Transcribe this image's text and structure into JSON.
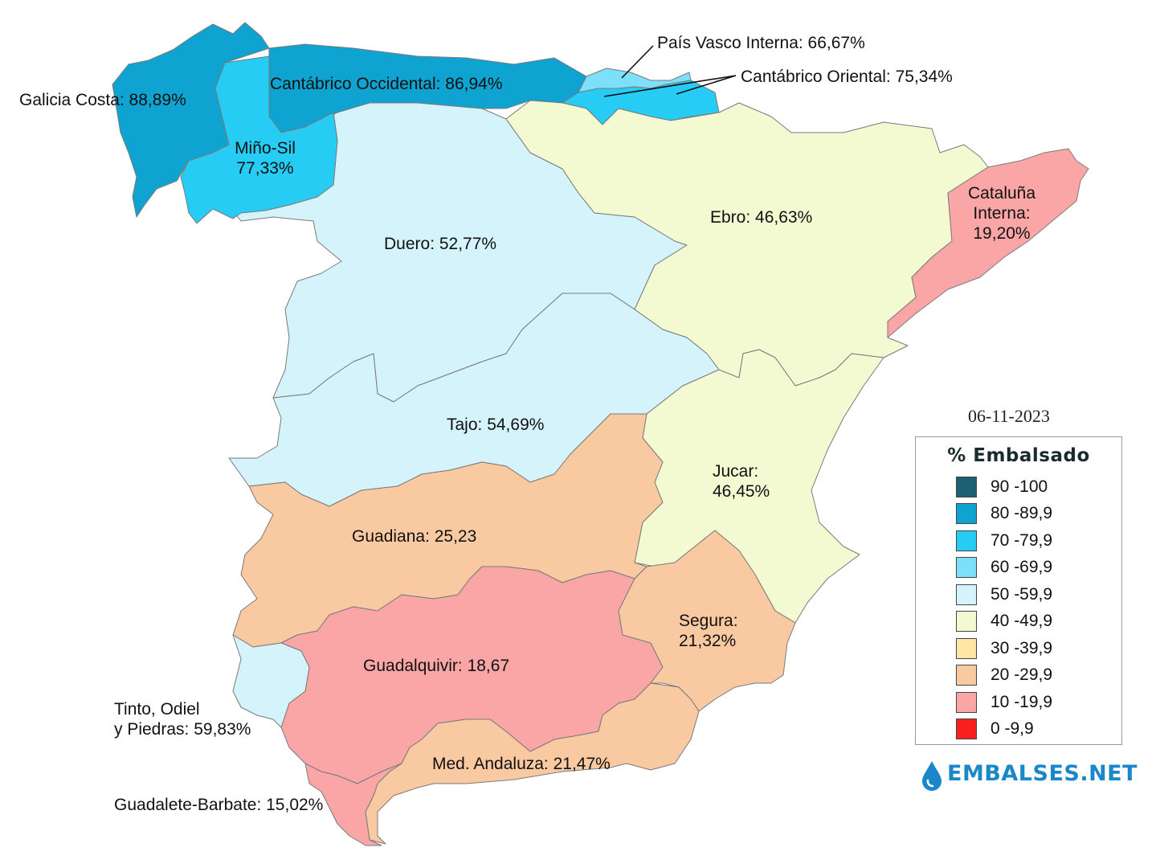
{
  "date": "06-11-2023",
  "legend": {
    "title": "% Embalsado",
    "items": [
      {
        "label": "90 -100",
        "color": "#1f5f74"
      },
      {
        "label": "80 -89,9",
        "color": "#0ea3d0"
      },
      {
        "label": "70 -79,9",
        "color": "#26ccf4"
      },
      {
        "label": "60 -69,9",
        "color": "#7de0fb"
      },
      {
        "label": "50 -59,9",
        "color": "#d4f3fb"
      },
      {
        "label": "40 -49,9",
        "color": "#f3fad2"
      },
      {
        "label": "30 -39,9",
        "color": "#fde6a6"
      },
      {
        "label": "20 -29,9",
        "color": "#f9c9a2"
      },
      {
        "label": "10 -19,9",
        "color": "#fba6a6"
      },
      {
        "label": "0 -9,9",
        "color": "#f71f1f"
      }
    ]
  },
  "basins": [
    {
      "id": "galicia-costa",
      "label": "Galicia Costa: 88,89%",
      "value": 88.89,
      "color": "#0ea3d0"
    },
    {
      "id": "cantabrico-occidental",
      "label": "Cantábrico Occidental: 86,94%",
      "value": 86.94,
      "color": "#0ea3d0"
    },
    {
      "id": "mino-sil",
      "label": "Miño-Sil\n77,33%",
      "value": 77.33,
      "color": "#26ccf4"
    },
    {
      "id": "pais-vasco-interna",
      "label": "País Vasco Interna: 66,67%",
      "value": 66.67,
      "color": "#7de0fb"
    },
    {
      "id": "cantabrico-oriental",
      "label": "Cantábrico Oriental: 75,34%",
      "value": 75.34,
      "color": "#26ccf4"
    },
    {
      "id": "duero",
      "label": "Duero: 52,77%",
      "value": 52.77,
      "color": "#d4f3fb"
    },
    {
      "id": "ebro",
      "label": "Ebro: 46,63%",
      "value": 46.63,
      "color": "#f3fad2"
    },
    {
      "id": "cataluna-interna",
      "label": "Cataluña\nInterna:\n19,20%",
      "value": 19.2,
      "color": "#fba6a6"
    },
    {
      "id": "tajo",
      "label": "Tajo: 54,69%",
      "value": 54.69,
      "color": "#d4f3fb"
    },
    {
      "id": "jucar",
      "label": "Jucar:\n46,45%",
      "value": 46.45,
      "color": "#f3fad2"
    },
    {
      "id": "guadiana",
      "label": "Guadiana: 25,23",
      "value": 25.23,
      "color": "#f9c9a2"
    },
    {
      "id": "segura",
      "label": "Segura:\n21,32%",
      "value": 21.32,
      "color": "#f9c9a2"
    },
    {
      "id": "guadalquivir",
      "label": "Guadalquivir: 18,67",
      "value": 18.67,
      "color": "#fba6a6"
    },
    {
      "id": "tinto-odiel-piedras",
      "label": "Tinto, Odiel\ny Piedras: 59,83%",
      "value": 59.83,
      "color": "#d4f3fb"
    },
    {
      "id": "med-andaluza",
      "label": "Med. Andaluza: 21,47%",
      "value": 21.47,
      "color": "#f9c9a2"
    },
    {
      "id": "guadalete-barbate",
      "label": "Guadalete-Barbate: 15,02%",
      "value": 15.02,
      "color": "#fba6a6"
    }
  ],
  "brand": {
    "name": "EMBALSES.NET",
    "color": "#1b87c9"
  }
}
